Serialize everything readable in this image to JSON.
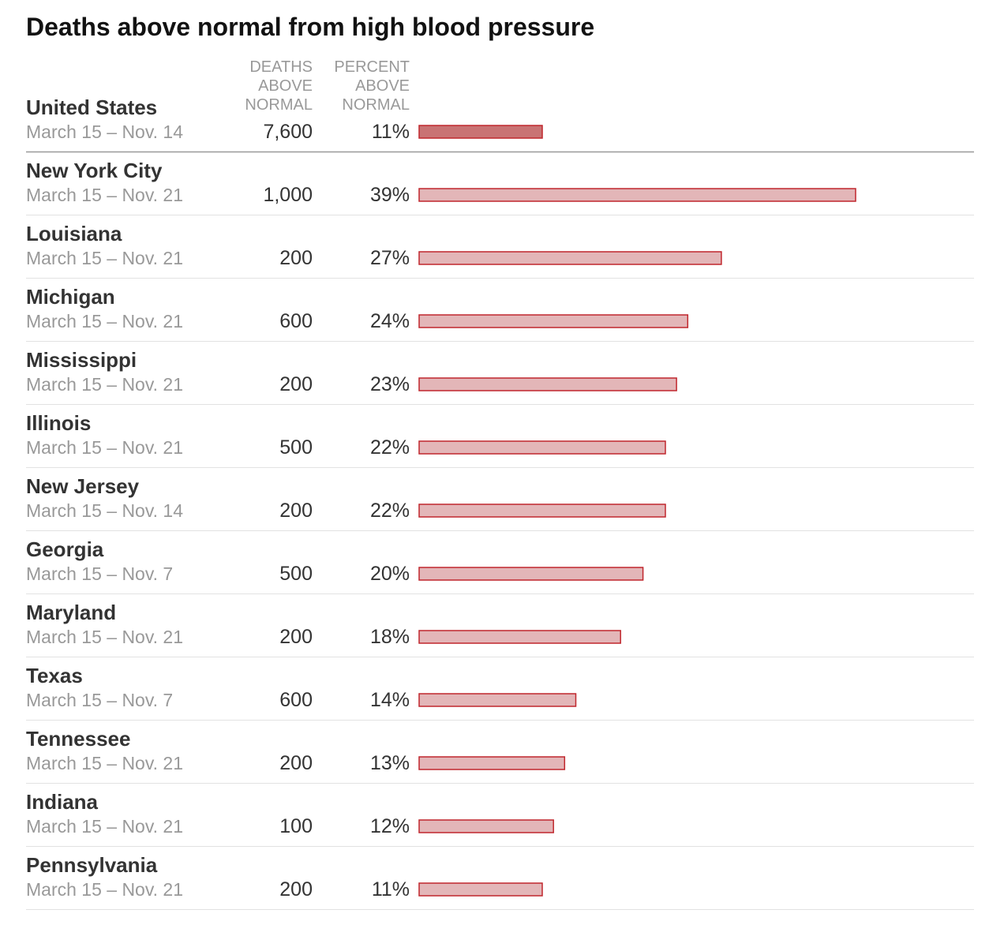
{
  "chart_data": {
    "type": "bar",
    "title": "Deaths above normal from high blood pressure",
    "columns": {
      "deaths": [
        "DEATHS",
        "ABOVE",
        "NORMAL"
      ],
      "percent": [
        "PERCENT",
        "ABOVE",
        "NORMAL"
      ]
    },
    "summary": {
      "name": "United States",
      "period": "March 15 – Nov. 14",
      "deaths": "7,600",
      "percent_label": "11%",
      "percent": 11
    },
    "rows": [
      {
        "name": "New York City",
        "period": "March 15 – Nov. 21",
        "deaths": "1,000",
        "percent_label": "39%",
        "percent": 39
      },
      {
        "name": "Louisiana",
        "period": "March 15 – Nov. 21",
        "deaths": "200",
        "percent_label": "27%",
        "percent": 27
      },
      {
        "name": "Michigan",
        "period": "March 15 – Nov. 21",
        "deaths": "600",
        "percent_label": "24%",
        "percent": 24
      },
      {
        "name": "Mississippi",
        "period": "March 15 – Nov. 21",
        "deaths": "200",
        "percent_label": "23%",
        "percent": 23
      },
      {
        "name": "Illinois",
        "period": "March 15 – Nov. 21",
        "deaths": "500",
        "percent_label": "22%",
        "percent": 22
      },
      {
        "name": "New Jersey",
        "period": "March 15 – Nov. 14",
        "deaths": "200",
        "percent_label": "22%",
        "percent": 22
      },
      {
        "name": "Georgia",
        "period": "March 15 – Nov. 7",
        "deaths": "500",
        "percent_label": "20%",
        "percent": 20
      },
      {
        "name": "Maryland",
        "period": "March 15 – Nov. 21",
        "deaths": "200",
        "percent_label": "18%",
        "percent": 18
      },
      {
        "name": "Texas",
        "period": "March 15 – Nov. 7",
        "deaths": "600",
        "percent_label": "14%",
        "percent": 14
      },
      {
        "name": "Tennessee",
        "period": "March 15 – Nov. 21",
        "deaths": "200",
        "percent_label": "13%",
        "percent": 13
      },
      {
        "name": "Indiana",
        "period": "March 15 – Nov. 21",
        "deaths": "100",
        "percent_label": "12%",
        "percent": 12
      },
      {
        "name": "Pennsylvania",
        "period": "March 15 – Nov. 21",
        "deaths": "200",
        "percent_label": "11%",
        "percent": 11
      }
    ],
    "colors": {
      "summary_bar_fill": "#c97374",
      "bar_fill": "#e3b6b8",
      "bar_stroke": "#c0272d",
      "divider": "#999999",
      "row_line": "#e2e2e2"
    }
  }
}
